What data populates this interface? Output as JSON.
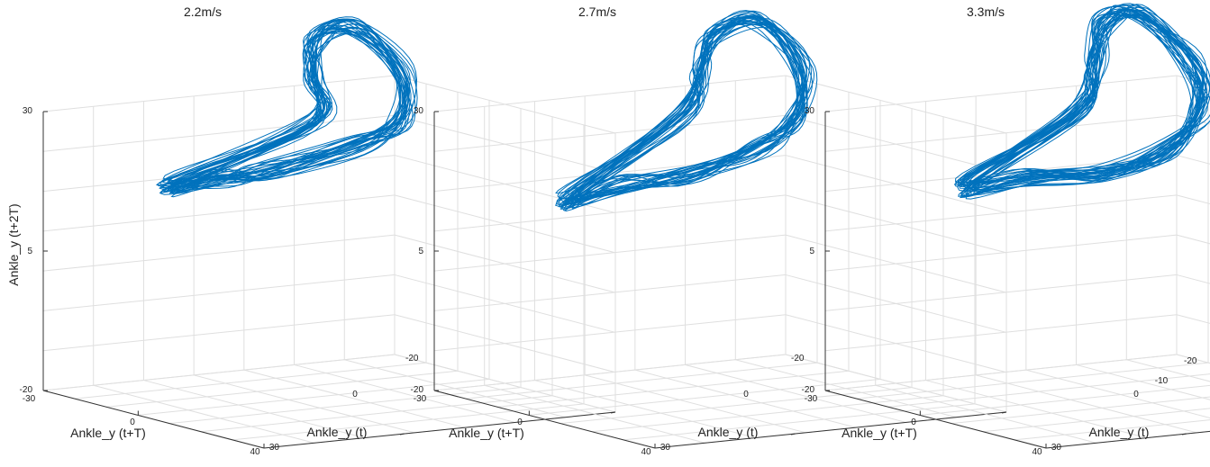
{
  "chart_data": [
    {
      "type": "line",
      "title": "2.2m/s",
      "xlabel": "Ankle_y (t)",
      "ylabel": "Ankle_y (t+T)",
      "zlabel": "Ankle_y (t+2T)",
      "x_ticks": [
        "-20",
        "0",
        "30"
      ],
      "y_ticks": [
        "-30",
        "0",
        "40"
      ],
      "z_ticks": [
        "-20",
        "5",
        "30"
      ],
      "xlim": [
        -20,
        30
      ],
      "ylim": [
        -30,
        40
      ],
      "zlim": [
        -20,
        30
      ],
      "grid": true,
      "series_color": "#0072BD",
      "loops": 30
    },
    {
      "type": "line",
      "title": "2.7m/s",
      "xlabel": "Ankle_y (t)",
      "ylabel": "Ankle_y (t+T)",
      "zlabel": "",
      "x_ticks": [
        "-20",
        "0",
        "30"
      ],
      "y_ticks": [
        "-30",
        "0",
        "40"
      ],
      "z_ticks": [
        "-20",
        "5",
        "30"
      ],
      "xlim": [
        -20,
        30
      ],
      "ylim": [
        -30,
        40
      ],
      "zlim": [
        -20,
        30
      ],
      "grid": true,
      "series_color": "#0072BD",
      "loops": 30
    },
    {
      "type": "line",
      "title": "3.3m/s",
      "xlabel": "Ankle_y (t)",
      "ylabel": "Ankle_y (t+T)",
      "zlabel": "",
      "x_ticks": [
        "-20",
        "-10",
        "0",
        "30"
      ],
      "y_ticks": [
        "-30",
        "0",
        "40"
      ],
      "z_ticks": [
        "-20",
        "5",
        "30"
      ],
      "xlim": [
        -20,
        30
      ],
      "ylim": [
        -30,
        40
      ],
      "zlim": [
        -20,
        30
      ],
      "grid": true,
      "series_color": "#0072BD",
      "loops": 34
    }
  ]
}
